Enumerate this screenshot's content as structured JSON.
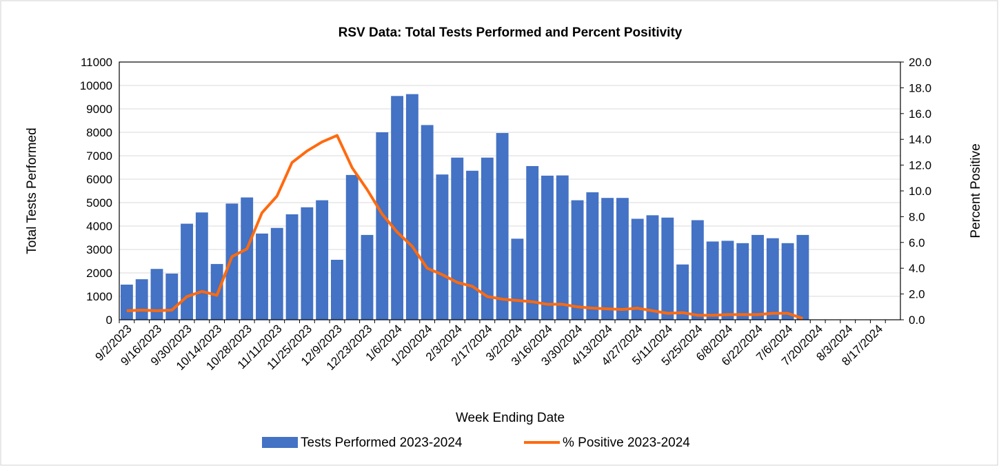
{
  "chart_data": {
    "type": "bar_line",
    "title": "RSV Data: Total Tests Performed and Percent Positivity",
    "x_label": "Week Ending Date",
    "y_label": "Total Tests Performed",
    "y2_label": "Percent Positive",
    "categories": [
      "9/2/2023",
      null,
      "9/16/2023",
      null,
      "9/30/2023",
      null,
      "10/14/2023",
      null,
      "10/28/2023",
      null,
      "11/11/2023",
      null,
      "11/25/2023",
      null,
      "12/9/2023",
      null,
      "12/23/2023",
      null,
      "1/6/2024",
      null,
      "1/20/2024",
      null,
      "2/3/2024",
      null,
      "2/17/2024",
      null,
      "3/2/2024",
      null,
      "3/16/2024",
      null,
      "3/30/2024",
      null,
      "4/13/2024",
      null,
      "4/27/2024",
      null,
      "5/11/2024",
      null,
      "5/25/2024",
      null,
      "6/8/2024",
      null,
      "6/22/2024",
      null,
      "7/6/2024",
      null,
      "7/20/2024",
      null,
      "8/3/2024",
      null,
      "8/17/2024",
      null
    ],
    "series": [
      {
        "name": "Tests Performed 2023-2024",
        "type": "bar",
        "color": "#4472c4",
        "values": [
          1500,
          1730,
          2170,
          1970,
          4100,
          4580,
          2380,
          4960,
          5220,
          3680,
          3920,
          4500,
          4800,
          5100,
          2560,
          6180,
          3620,
          8000,
          9550,
          9630,
          8310,
          6200,
          6920,
          6360,
          6920,
          7970,
          3460,
          6560,
          6150,
          6160,
          5100,
          5440,
          5200,
          5200,
          4310,
          4460,
          4360,
          2360,
          4250,
          3340,
          3370,
          3270,
          3620,
          3480,
          3270,
          3620,
          null,
          null,
          null,
          null,
          null,
          null
        ]
      },
      {
        "name": "% Positive 2023-2024",
        "type": "line",
        "axis": "y2",
        "color": "#ff6a0f",
        "values": [
          0.7,
          0.75,
          0.7,
          0.75,
          1.8,
          2.2,
          1.9,
          4.9,
          5.5,
          8.3,
          9.6,
          12.2,
          13.1,
          13.8,
          14.3,
          11.8,
          10.1,
          8.2,
          6.8,
          5.7,
          4.0,
          3.5,
          2.9,
          2.6,
          1.8,
          1.6,
          1.5,
          1.4,
          1.2,
          1.2,
          1.0,
          0.9,
          0.85,
          0.8,
          0.9,
          0.7,
          0.5,
          0.55,
          0.35,
          0.35,
          0.4,
          0.4,
          0.4,
          0.5,
          0.5,
          0.1,
          null,
          null,
          null,
          null,
          null,
          null
        ]
      }
    ],
    "ylim": [
      0,
      11000
    ],
    "yticks": [
      0,
      1000,
      2000,
      3000,
      4000,
      5000,
      6000,
      7000,
      8000,
      9000,
      10000,
      11000
    ],
    "y2lim": [
      0,
      20
    ],
    "y2ticks": [
      {
        "value": 0,
        "label": "0.0"
      },
      {
        "value": 2,
        "label": "2.0"
      },
      {
        "value": 4,
        "label": "4.0"
      },
      {
        "value": 6,
        "label": "6.0"
      },
      {
        "value": 8,
        "label": "8.0"
      },
      {
        "value": 10,
        "label": "10.0"
      },
      {
        "value": 12,
        "label": "12.0"
      },
      {
        "value": 14,
        "label": "14.0"
      },
      {
        "value": 16,
        "label": "16.0"
      },
      {
        "value": 18,
        "label": "18.0"
      },
      {
        "value": 20,
        "label": "20.0"
      }
    ],
    "grid": true,
    "legend": "bottom"
  }
}
